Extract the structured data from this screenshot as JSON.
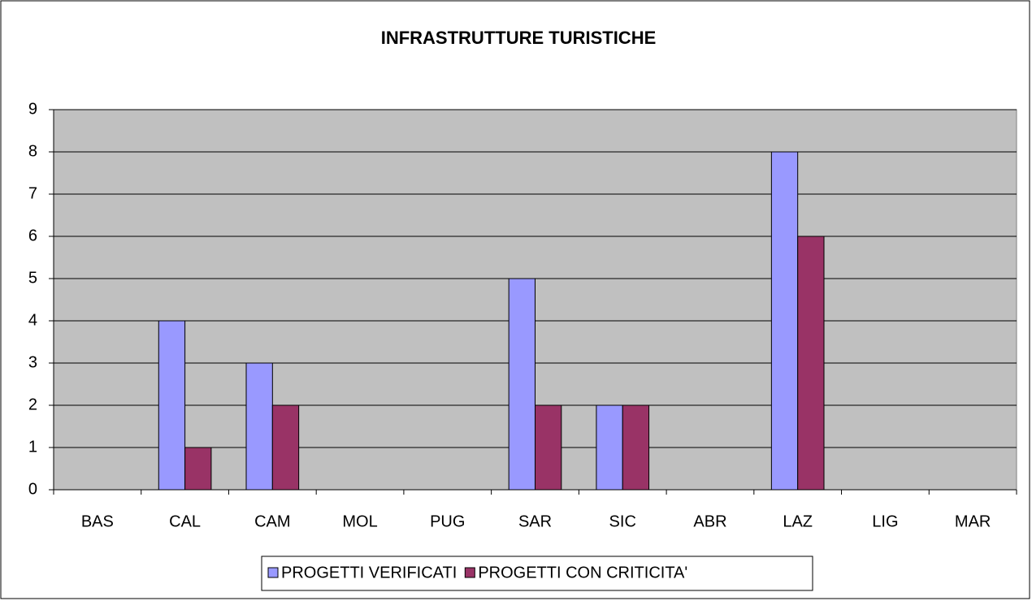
{
  "chart_data": {
    "type": "bar",
    "title": "INFRASTRUTTURE TURISTICHE",
    "categories": [
      "BAS",
      "CAL",
      "CAM",
      "MOL",
      "PUG",
      "SAR",
      "SIC",
      "ABR",
      "LAZ",
      "LIG",
      "MAR"
    ],
    "series": [
      {
        "name": "PROGETTI VERIFICATI",
        "color": "#9999ff",
        "values": [
          0,
          4,
          3,
          0,
          0,
          5,
          2,
          0,
          8,
          0,
          0
        ]
      },
      {
        "name": "PROGETTI CON CRITICITA'",
        "color": "#993366",
        "values": [
          0,
          1,
          2,
          0,
          0,
          2,
          2,
          0,
          6,
          0,
          0
        ]
      }
    ],
    "ylim": [
      0,
      9
    ],
    "yticks": [
      0,
      1,
      2,
      3,
      4,
      5,
      6,
      7,
      8,
      9
    ],
    "grid": true,
    "legend": "bottom"
  }
}
